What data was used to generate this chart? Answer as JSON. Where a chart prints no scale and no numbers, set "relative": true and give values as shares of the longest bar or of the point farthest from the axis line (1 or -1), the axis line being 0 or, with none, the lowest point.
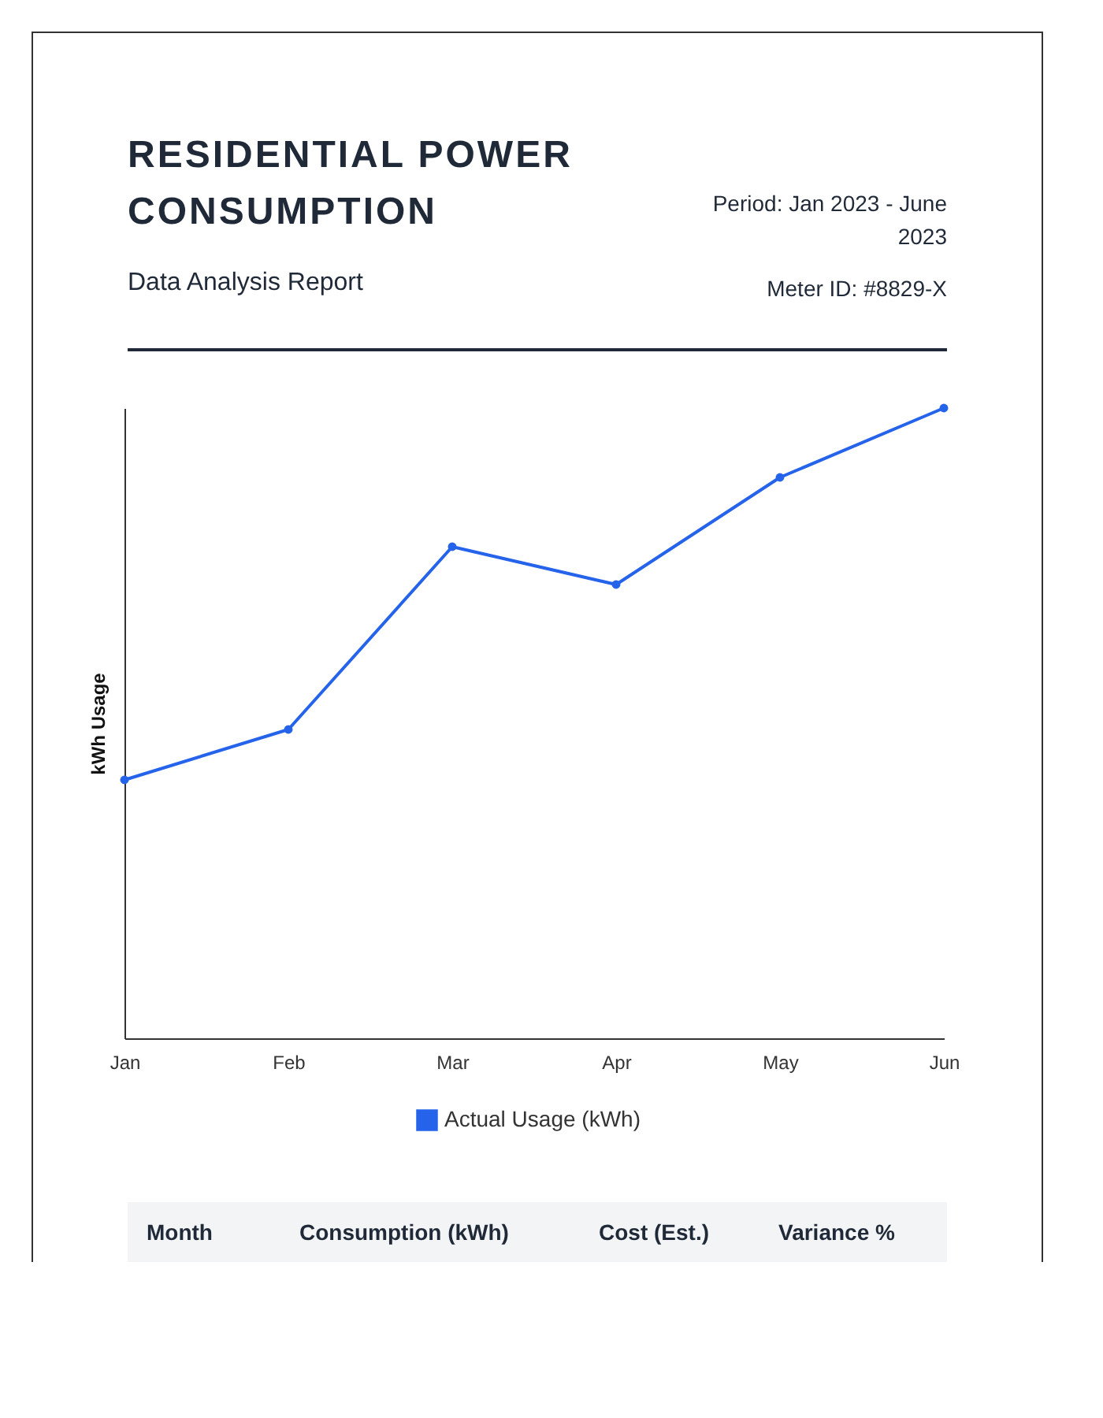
{
  "chart_data": {
    "type": "line",
    "title": "RESIDENTIAL POWER CONSUMPTION",
    "subtitle": "Data Analysis Report",
    "ylabel": "kWh Usage",
    "relative": true,
    "annotations": [
      "Period: Jan 2023 - June 2023",
      "Meter ID: #8829-X",
      "Month",
      "Consumption (kWh)",
      "Cost (Est.)",
      "Variance %"
    ],
    "categories": [
      "Jan",
      "Feb",
      "Mar",
      "Apr",
      "May",
      "Jun"
    ],
    "series": [
      {
        "name": "Actual Usage (kWh)",
        "color": "#2563eb",
        "values": [
          0.41,
          0.49,
          0.78,
          0.72,
          0.89,
          1
        ]
      }
    ],
    "legend": "bottom",
    "marker": "circle",
    "line_style": "solid"
  }
}
